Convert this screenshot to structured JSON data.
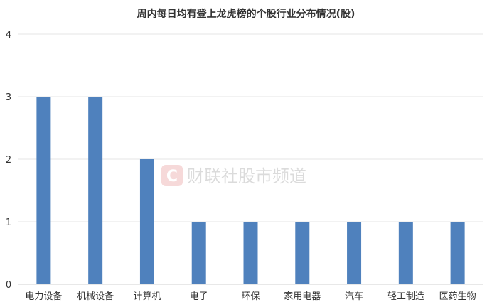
{
  "chart_data": {
    "type": "bar",
    "title": "周内每日均有登上龙虎榜的个股行业分布情况(股)",
    "categories": [
      "电力设备",
      "机械设备",
      "计算机",
      "电子",
      "环保",
      "家用电器",
      "汽车",
      "轻工制造",
      "医药生物"
    ],
    "values": [
      3,
      3,
      2,
      1,
      1,
      1,
      1,
      1,
      1
    ],
    "ylim": [
      0,
      4
    ],
    "yticks": [
      "0",
      "1",
      "2",
      "3",
      "4"
    ],
    "grid": true,
    "bar_color": "#4f81bd"
  },
  "watermark": {
    "logo_letter": "C",
    "text": "财联社股市频道",
    "logo_color": "#f3c2c2"
  }
}
